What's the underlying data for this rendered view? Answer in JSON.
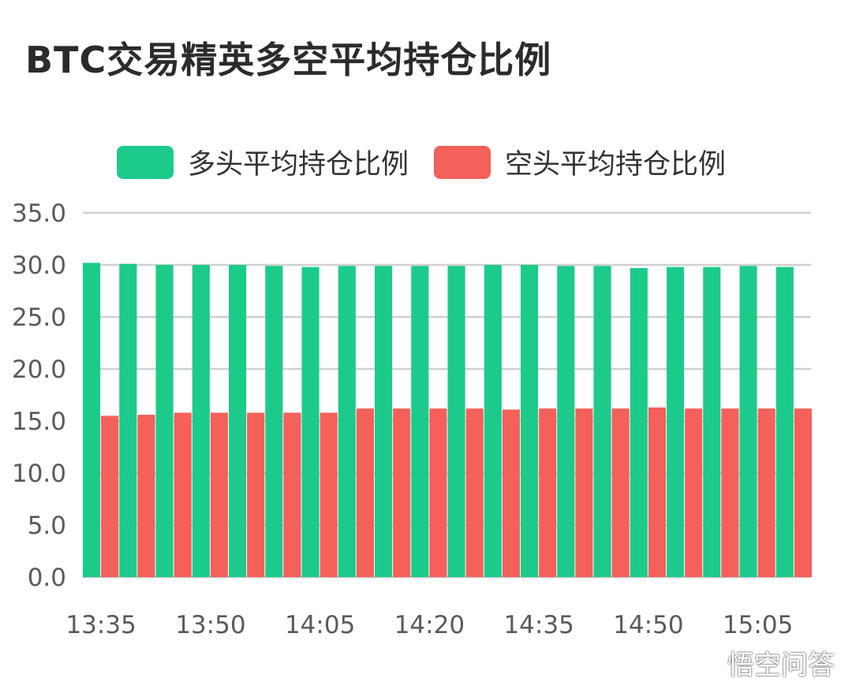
{
  "chart_data": {
    "type": "bar",
    "title": "BTC交易精英多空平均持仓比例",
    "xlabel": "",
    "ylabel": "",
    "ylim": [
      0,
      35
    ],
    "yticks": [
      "0.0",
      "5.0",
      "10.0",
      "15.0",
      "20.0",
      "25.0",
      "30.0",
      "35.0"
    ],
    "xtick_labels": [
      "13:35",
      "13:50",
      "14:05",
      "14:20",
      "14:35",
      "14:50",
      "15:05"
    ],
    "categories": [
      "13:35",
      "13:40",
      "13:45",
      "13:50",
      "13:55",
      "14:00",
      "14:05",
      "14:10",
      "14:15",
      "14:20",
      "14:25",
      "14:30",
      "14:35",
      "14:40",
      "14:45",
      "14:50",
      "14:55",
      "15:00",
      "15:05",
      "15:10"
    ],
    "series": [
      {
        "name": "多头平均持仓比例",
        "color": "#1ccb8b",
        "values": [
          30.2,
          30.1,
          30.0,
          30.0,
          30.0,
          29.9,
          29.8,
          29.9,
          29.9,
          29.9,
          29.9,
          30.0,
          30.0,
          29.9,
          29.9,
          29.7,
          29.8,
          29.8,
          29.9,
          29.8
        ]
      },
      {
        "name": "空头平均持仓比例",
        "color": "#f4605a",
        "values": [
          15.5,
          15.6,
          15.8,
          15.8,
          15.8,
          15.8,
          15.8,
          16.2,
          16.2,
          16.2,
          16.2,
          16.1,
          16.2,
          16.2,
          16.2,
          16.3,
          16.2,
          16.2,
          16.2,
          16.2
        ]
      }
    ],
    "grid": true,
    "legend_position": "top"
  },
  "watermark": {
    "text": "悟空问答",
    "icon": "chat-bubbles-icon"
  }
}
